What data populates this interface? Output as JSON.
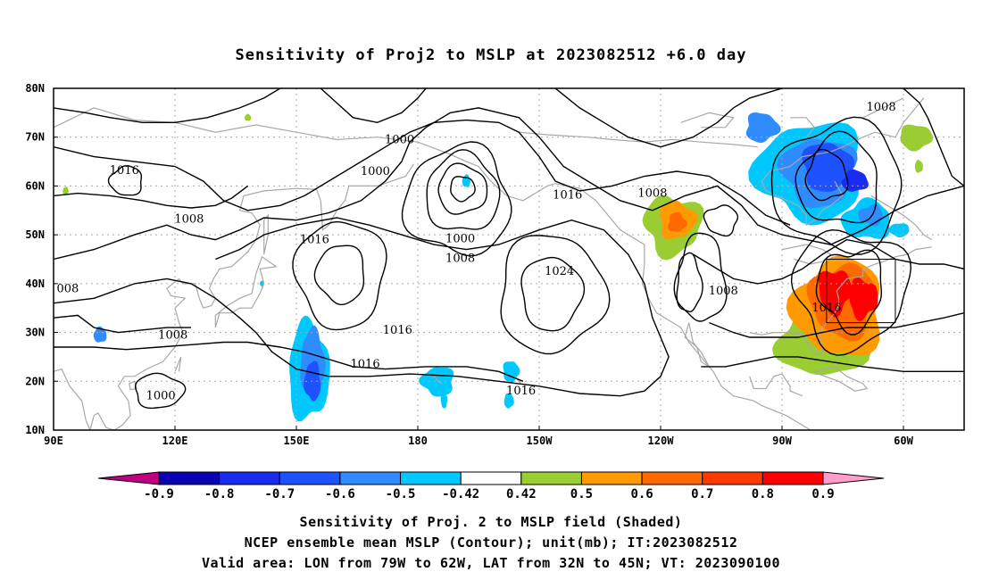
{
  "chart_data": {
    "type": "heatmap",
    "title": "Sensitivity of Proj2 to MSLP at 2023082512 +6.0 day",
    "x_ticks": [
      "90E",
      "120E",
      "150E",
      "180",
      "150W",
      "120W",
      "90W",
      "60W"
    ],
    "x_tick_values": [
      90,
      120,
      150,
      180,
      210,
      240,
      270,
      300
    ],
    "y_ticks": [
      "10N",
      "20N",
      "30N",
      "40N",
      "50N",
      "60N",
      "70N",
      "80N"
    ],
    "y_tick_values": [
      10,
      20,
      30,
      40,
      50,
      60,
      70,
      80
    ],
    "xlim": [
      90,
      315
    ],
    "ylim": [
      10,
      80
    ],
    "grid": true,
    "colorbar": {
      "levels": [
        "-0.9",
        "-0.8",
        "-0.7",
        "-0.6",
        "-0.5",
        "-0.42",
        "0.42",
        "0.5",
        "0.6",
        "0.7",
        "0.8",
        "0.9"
      ],
      "colors": [
        "#c0007f",
        "#0a00b4",
        "#1a2cf0",
        "#1e52ff",
        "#2f8cff",
        "#00c8ff",
        "#ffffff",
        "#9acd32",
        "#ff9a00",
        "#ff6a00",
        "#ff3a00",
        "#ff0000",
        "#ff9ec8"
      ]
    },
    "contour_labels": [
      {
        "text": "1016",
        "lon": 107.5,
        "lat": 63.2
      },
      {
        "text": "1000",
        "lon": 175.5,
        "lat": 69.5
      },
      {
        "text": "1000",
        "lon": 169.5,
        "lat": 63.0
      },
      {
        "text": "1008",
        "lon": 123.5,
        "lat": 53.2
      },
      {
        "text": "1016",
        "lon": 154.5,
        "lat": 49.0
      },
      {
        "text": "1016",
        "lon": 217.0,
        "lat": 58.2
      },
      {
        "text": "1008",
        "lon": 238.0,
        "lat": 58.5
      },
      {
        "text": "1008",
        "lon": 294.5,
        "lat": 76.2
      },
      {
        "text": "1000",
        "lon": 190.5,
        "lat": 49.2
      },
      {
        "text": "1008",
        "lon": 190.5,
        "lat": 45.2
      },
      {
        "text": "1024",
        "lon": 215.0,
        "lat": 42.5
      },
      {
        "text": "1008",
        "lon": 255.5,
        "lat": 38.5
      },
      {
        "text": "1016",
        "lon": 281.0,
        "lat": 35.0
      },
      {
        "text": "008",
        "lon": 93.5,
        "lat": 39.0
      },
      {
        "text": "1008",
        "lon": 119.5,
        "lat": 29.5
      },
      {
        "text": "1016",
        "lon": 175.0,
        "lat": 30.5
      },
      {
        "text": "1016",
        "lon": 167.0,
        "lat": 23.5
      },
      {
        "text": "1016",
        "lon": 205.5,
        "lat": 18.0
      },
      {
        "text": "1000",
        "lon": 116.5,
        "lat": 17.0
      }
    ],
    "valid_area": {
      "lon": [
        281,
        298
      ],
      "lat": [
        32,
        45
      ]
    }
  },
  "caption": {
    "line1": "Sensitivity of Proj. 2 to MSLP field (Shaded)",
    "line2": "NCEP ensemble mean MSLP (Contour); unit(mb); IT:2023082512",
    "line3": "Valid area: LON from 79W to 62W, LAT from 32N to 45N; VT: 2023090100"
  },
  "palette": {
    "frame": "#000000",
    "grid": "#aaaaaa",
    "coast": "#a8a8a8",
    "contour": "#000000"
  }
}
